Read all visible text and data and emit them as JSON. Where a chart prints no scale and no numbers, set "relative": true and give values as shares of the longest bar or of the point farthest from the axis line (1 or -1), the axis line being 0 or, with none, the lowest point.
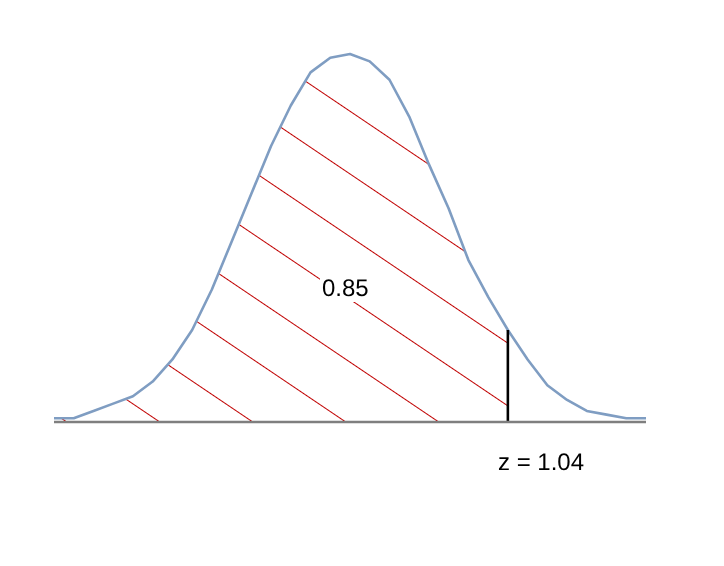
{
  "chart_data": {
    "type": "line",
    "relative": true,
    "categories": [
      null,
      null,
      null,
      null,
      null,
      null,
      null,
      null,
      null,
      null,
      null,
      null,
      null,
      null,
      null,
      null,
      null,
      null,
      null,
      null,
      null,
      null,
      null,
      null,
      null,
      null,
      null,
      null,
      null,
      null,
      null
    ],
    "grid": false,
    "legend": false,
    "marker": "none",
    "line_style": "solid",
    "series": [
      {
        "color": "#7f9dc2",
        "values": [
          0.01,
          0.01,
          0.03,
          0.05,
          0.07,
          0.11,
          0.17,
          0.25,
          0.36,
          0.49,
          0.62,
          0.75,
          0.86,
          0.95,
          0.99,
          1,
          0.98,
          0.93,
          0.83,
          0.7,
          0.58,
          0.44,
          0.34,
          0.25,
          0.17,
          0.1,
          0.06,
          0.03,
          0.02,
          0.01,
          0.01
        ]
      },
      {
        "type": "area",
        "color": "#c00000",
        "values": [
          0.01,
          0.01,
          0.03,
          0.05,
          0.07,
          0.11,
          0.17,
          0.25,
          0.36,
          0.49,
          0.62,
          0.75,
          0.86,
          0.95,
          0.99,
          1,
          0.98,
          0.93,
          0.83,
          0.7,
          0.58,
          0.44,
          0.34,
          0.25,
          null,
          null,
          null,
          null,
          null,
          null,
          null
        ]
      }
    ],
    "annotations": [
      "0.85",
      "z = 1.04"
    ]
  }
}
